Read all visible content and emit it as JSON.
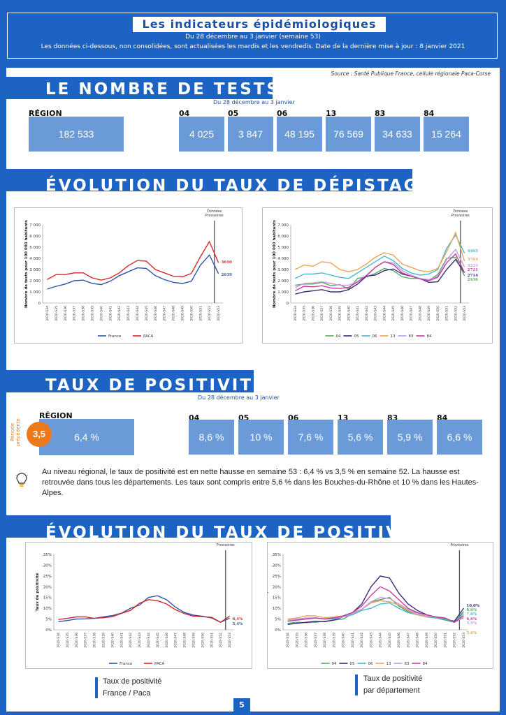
{
  "header": {
    "title": "Les indicateurs épidémiologiques",
    "subtitle": "Du 28 décembre au 3 janvier (semaine 53)",
    "note": "Les données ci-dessous, non consolidées, sont actualisées les mardis et les vendredis. Date de la dernière mise à jour : 8 janvier 2021"
  },
  "source": "Source : Santé Publique France, cellule régionale Paca-Corse",
  "tests": {
    "title": "LE NOMBRE DE TESTS",
    "period": "Du 28 décembre au 3 janvier",
    "region_label": "RÉGION",
    "region_value": "182 533",
    "departments": [
      {
        "code": "04",
        "value": "4 025"
      },
      {
        "code": "05",
        "value": "3 847"
      },
      {
        "code": "06",
        "value": "48 195"
      },
      {
        "code": "13",
        "value": "76 569"
      },
      {
        "code": "83",
        "value": "34 633"
      },
      {
        "code": "84",
        "value": "15 264"
      }
    ]
  },
  "depistage": {
    "title": "ÉVOLUTION DU TAUX DE DÉPISTAGE"
  },
  "positivite": {
    "title": "TAUX DE POSITIVITÉ",
    "period": "Du 28 décembre au 3 janvier",
    "region_label": "RÉGION",
    "region_value": "6,4 %",
    "previous_label": "Période précédente",
    "previous_value": "3,5",
    "departments": [
      {
        "code": "04",
        "value": "8,6 %"
      },
      {
        "code": "05",
        "value": "10 %"
      },
      {
        "code": "06",
        "value": "7,6 %"
      },
      {
        "code": "13",
        "value": "5,6 %"
      },
      {
        "code": "83",
        "value": "5,9 %"
      },
      {
        "code": "84",
        "value": "6,6 %"
      }
    ],
    "comment": "Au niveau régional, le taux de positivité est en nette hausse en semaine 53 : 6,4 % vs 3,5 % en semaine 52. La hausse est retrouvée dans tous les départements. Les taux sont compris entre 5,6 % dans les Bouches-du-Rhône et 10 % dans les Hautes-Alpes."
  },
  "evolution_positivite": {
    "title": "ÉVOLUTION DU TAUX DE POSITIVITÉ",
    "legend_left": [
      "Taux de positivité",
      "France / Paca"
    ],
    "legend_right": [
      "Taux de positivité",
      "par département"
    ]
  },
  "page_number": "5",
  "colors": {
    "brand": "#1d63c4",
    "box": "#6a9bd8",
    "orange": "#ec7a1c",
    "france": "#2a55a6",
    "paca": "#d9242a",
    "d04": "#5aa85a",
    "d05": "#3a2a7a",
    "d06": "#44b6d0",
    "d13": "#e8a55a",
    "d83": "#c59ae0",
    "d84": "#c43ea0"
  },
  "chart_data": [
    {
      "type": "line",
      "ylabel": "Nombre de tests pour 100 000 habitants",
      "ylim": [
        0,
        7000
      ],
      "yticks": [
        "0",
        "1 000",
        "2 000",
        "3 000",
        "4 000",
        "5 000",
        "6 000",
        "7 000"
      ],
      "annotation": "Données Provisoires",
      "categories": [
        "2020-S34",
        "2020-S35",
        "2020-S36",
        "2020-S37",
        "2020-S38",
        "2020-S39",
        "2020-S40",
        "2020-S41",
        "2020-S42",
        "2020-S43",
        "2020-S44",
        "2020-S45",
        "2020-S46",
        "2020-S47",
        "2020-S48",
        "2020-S49",
        "2020-S50",
        "2020-S51",
        "2020-S52",
        "2020-S53"
      ],
      "series": [
        {
          "name": "France",
          "color": "#2a55a6",
          "values": [
            1250,
            1500,
            1700,
            2000,
            2050,
            1750,
            1650,
            1950,
            2450,
            2800,
            3150,
            3100,
            2450,
            2100,
            1850,
            1750,
            1950,
            3400,
            4300,
            2639
          ],
          "end_label": "2639"
        },
        {
          "name": "PACA",
          "color": "#d9242a",
          "values": [
            2100,
            2550,
            2550,
            2700,
            2700,
            2250,
            2050,
            2250,
            2700,
            3350,
            3800,
            3750,
            3000,
            2700,
            2400,
            2350,
            2650,
            4150,
            5500,
            3610
          ],
          "end_label": "3610"
        }
      ],
      "legend": [
        "France",
        "PACA"
      ]
    },
    {
      "type": "line",
      "ylim": [
        0,
        7000
      ],
      "ylabel": "Nombre de tests pour 100 000 habitants",
      "yticks": [
        "0",
        "1 000",
        "2 000",
        "3 000",
        "4 000",
        "5 000",
        "6 000",
        "7 000"
      ],
      "annotation": "Données Provisoires",
      "categories": [
        "2020-S34",
        "2020-S35",
        "2020-S36",
        "2020-S37",
        "2020-S38",
        "2020-S39",
        "2020-S40",
        "2020-S41",
        "2020-S42",
        "2020-S43",
        "2020-S44",
        "2020-S45",
        "2020-S46",
        "2020-S47",
        "2020-S48",
        "2020-S49",
        "2020-S50",
        "2020-S51",
        "2020-S52",
        "2020-S53"
      ],
      "series": [
        {
          "name": "04",
          "color": "#5aa85a",
          "values": [
            1600,
            1700,
            1700,
            1850,
            1550,
            1650,
            1250,
            2200,
            2350,
            2650,
            3100,
            2900,
            2350,
            2200,
            2200,
            2050,
            2550,
            4000,
            4100,
            2436
          ],
          "end_label": "2436"
        },
        {
          "name": "05",
          "color": "#3a2a7a",
          "values": [
            800,
            1000,
            1100,
            1200,
            1000,
            1000,
            1200,
            1700,
            2400,
            2500,
            2900,
            3050,
            2600,
            2400,
            2200,
            1850,
            1900,
            3000,
            3900,
            2714
          ],
          "end_label": "2714"
        },
        {
          "name": "06",
          "color": "#44b6d0",
          "values": [
            2200,
            2600,
            2600,
            2700,
            2500,
            2300,
            2200,
            2700,
            3200,
            3700,
            4200,
            3800,
            3100,
            2700,
            2500,
            2600,
            3000,
            4900,
            6100,
            4465
          ],
          "end_label": "4465"
        },
        {
          "name": "13",
          "color": "#e8a55a",
          "values": [
            3000,
            3400,
            3300,
            3700,
            3600,
            3000,
            2800,
            3000,
            3500,
            4100,
            4500,
            4300,
            3500,
            3200,
            2900,
            2800,
            3100,
            4600,
            6300,
            3764
          ],
          "end_label": "3764"
        },
        {
          "name": "83",
          "color": "#c59ae0",
          "values": [
            1400,
            1750,
            1800,
            1900,
            1750,
            1600,
            1600,
            1900,
            2500,
            3200,
            3700,
            3600,
            2900,
            2500,
            2200,
            2100,
            2400,
            3900,
            4800,
            3225
          ],
          "end_label": "3225"
        },
        {
          "name": "84",
          "color": "#c43ea0",
          "values": [
            1100,
            1500,
            1450,
            1550,
            1350,
            1300,
            1400,
            1900,
            2450,
            3200,
            3700,
            3450,
            2700,
            2400,
            2150,
            2000,
            2300,
            3600,
            4400,
            2721
          ],
          "end_label": "2721"
        }
      ],
      "legend": [
        "04",
        "05",
        "06",
        "13",
        "83",
        "84"
      ]
    },
    {
      "type": "line",
      "ylabel": "Taux de positivité",
      "ylim": [
        0,
        35
      ],
      "yticks": [
        "0%",
        "5%",
        "10%",
        "15%",
        "20%",
        "25%",
        "30%",
        "35%"
      ],
      "annotation": "Données Provisoires",
      "categories": [
        "2020-S34",
        "2020-S35",
        "2020-S36",
        "2020-S37",
        "2020-S38",
        "2020-S39",
        "2020-S40",
        "2020-S41",
        "2020-S42",
        "2020-S43",
        "2020-S44",
        "2020-S45",
        "2020-S46",
        "2020-S47",
        "2020-S48",
        "2020-S49",
        "2020-S50",
        "2020-S51",
        "2020-S52",
        "2020-S53"
      ],
      "series": [
        {
          "name": "France",
          "color": "#2a55a6",
          "values": [
            3.8,
            4.3,
            5.0,
            5.1,
            5.3,
            6.0,
            6.6,
            7.7,
            10.0,
            11.5,
            15.0,
            15.8,
            14.0,
            10.5,
            8.0,
            6.8,
            6.3,
            5.5,
            3.5,
            5.4
          ],
          "end_label": "5,4%"
        },
        {
          "name": "PACA",
          "color": "#d9242a",
          "values": [
            4.8,
            5.3,
            6.0,
            6.0,
            5.3,
            5.6,
            6.1,
            7.6,
            9.0,
            12.3,
            14.0,
            13.5,
            12.0,
            9.3,
            7.5,
            6.3,
            6.1,
            5.8,
            3.5,
            6.4
          ],
          "end_label": "6,4%"
        }
      ],
      "legend": [
        "France",
        "PACA"
      ]
    },
    {
      "type": "line",
      "ylabel": "Taux de positivité",
      "ylim": [
        0,
        35
      ],
      "yticks": [
        "0%",
        "5%",
        "10%",
        "15%",
        "20%",
        "25%",
        "30%",
        "35%"
      ],
      "annotation": "Données Provisoires",
      "categories": [
        "2020-S34",
        "2020-S35",
        "2020-S36",
        "2020-S37",
        "2020-S38",
        "2020-S39",
        "2020-S40",
        "2020-S41",
        "2020-S42",
        "2020-S43",
        "2020-S44",
        "2020-S45",
        "2020-S46",
        "2020-S47",
        "2020-S48",
        "2020-S49",
        "2020-S50",
        "2020-S51",
        "2020-S52",
        "2020-S53"
      ],
      "series": [
        {
          "name": "04",
          "color": "#5aa85a",
          "values": [
            3.0,
            3.5,
            3.3,
            3.5,
            4.0,
            4.5,
            5.0,
            7.5,
            9.5,
            13.0,
            14.0,
            15.0,
            11.0,
            8.5,
            7.0,
            6.0,
            5.5,
            4.5,
            3.5,
            8.6
          ],
          "end_label": "8,6%"
        },
        {
          "name": "05",
          "color": "#3a2a7a",
          "values": [
            2.5,
            3.0,
            3.5,
            4.0,
            3.8,
            4.5,
            6.0,
            8.0,
            12.0,
            20.0,
            25.0,
            24.0,
            17.0,
            12.0,
            9.0,
            7.0,
            6.0,
            5.0,
            4.0,
            10.0
          ],
          "end_label": "10,0%"
        },
        {
          "name": "06",
          "color": "#44b6d0",
          "values": [
            4.0,
            4.5,
            5.0,
            5.5,
            5.0,
            5.0,
            6.0,
            7.0,
            9.0,
            10.0,
            12.0,
            12.5,
            10.0,
            8.0,
            7.0,
            6.0,
            5.5,
            5.0,
            3.5,
            7.6
          ],
          "end_label": "7,6%"
        },
        {
          "name": "13",
          "color": "#e8a55a",
          "values": [
            5.0,
            5.5,
            6.5,
            6.5,
            5.5,
            6.0,
            6.5,
            8.0,
            9.5,
            12.5,
            13.5,
            13.0,
            11.5,
            9.0,
            7.0,
            6.0,
            6.0,
            5.5,
            3.5,
            5.6
          ],
          "end_label": "5,6%"
        },
        {
          "name": "83",
          "color": "#c59ae0",
          "values": [
            4.5,
            5.0,
            5.5,
            5.5,
            5.0,
            5.5,
            6.0,
            7.5,
            9.5,
            13.0,
            15.0,
            14.5,
            12.0,
            9.5,
            7.5,
            6.5,
            6.0,
            5.5,
            3.5,
            5.9
          ],
          "end_label": "5,9%"
        },
        {
          "name": "84",
          "color": "#c43ea0",
          "values": [
            4.0,
            4.5,
            5.0,
            5.5,
            5.0,
            5.5,
            6.5,
            8.0,
            11.0,
            16.0,
            20.0,
            18.0,
            14.0,
            10.0,
            8.0,
            7.0,
            6.0,
            5.5,
            3.5,
            6.6
          ],
          "end_label": "6,6%"
        }
      ],
      "legend": [
        "04",
        "05",
        "06",
        "13",
        "83",
        "84"
      ]
    }
  ]
}
